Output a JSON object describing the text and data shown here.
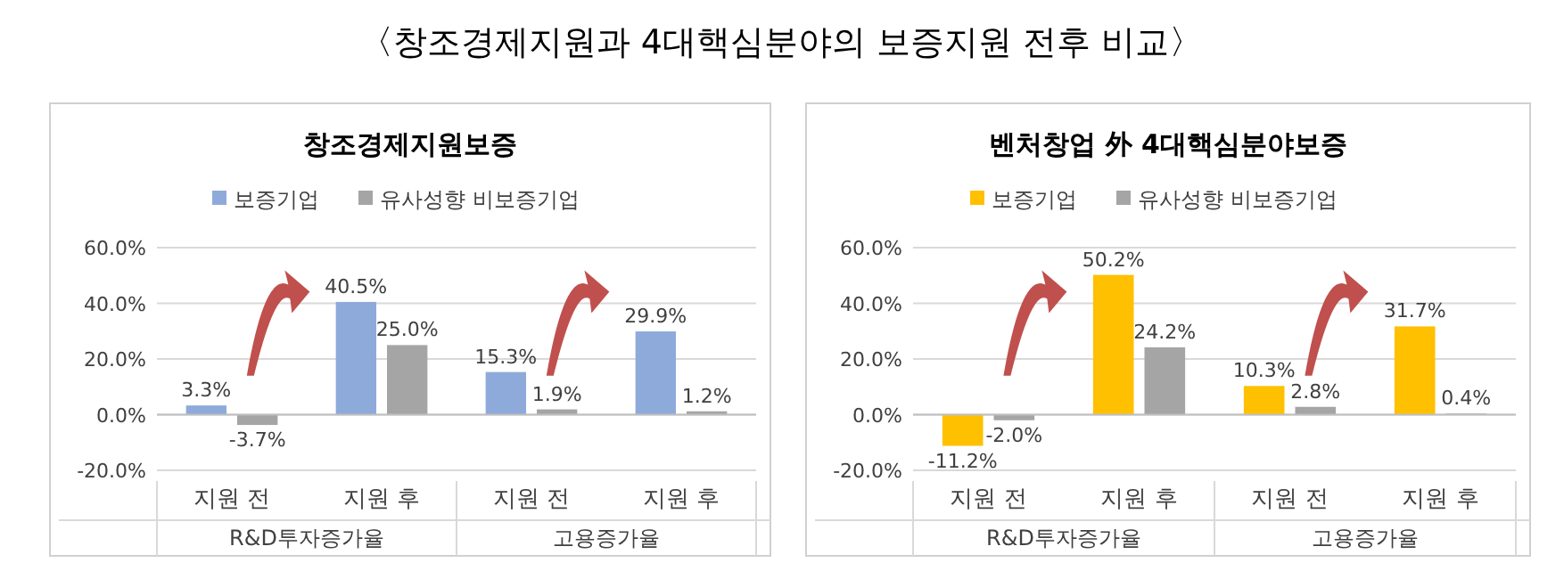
{
  "chart_data": [
    {
      "type": "bar",
      "title": "창조경제지원보증",
      "categories": [
        "지원 전",
        "지원 후",
        "지원 전",
        "지원 후"
      ],
      "series": [
        {
          "name": "보증기업",
          "color": "#8eaadb",
          "values": [
            3.3,
            40.5,
            15.3,
            29.9
          ],
          "value_labels": [
            "3.3%",
            "40.5%",
            "15.3%",
            "29.9%"
          ]
        },
        {
          "name": "유사성향 비보증기업",
          "color": "#a5a5a5",
          "values": [
            -3.7,
            25.0,
            1.9,
            1.2
          ],
          "value_labels": [
            "-3.7%",
            "25.0%",
            "1.9%",
            "1.2%"
          ]
        }
      ],
      "ylim": [
        -20,
        60
      ],
      "yticks": [
        {
          "value": -20,
          "label": "-20.0%"
        },
        {
          "value": 0,
          "label": "0.0%"
        },
        {
          "value": 20,
          "label": "20.0%"
        },
        {
          "value": 40,
          "label": "40.0%"
        },
        {
          "value": 60,
          "label": "60.0%"
        }
      ],
      "grid": "y",
      "legend": "top",
      "annotations": [
        "〈창조경제지원과 4대핵심분야의 보증지원 전후 비교〉",
        "R&D투자증가율",
        "고용증가율"
      ]
    },
    {
      "type": "bar",
      "title": "벤처창업 外 4대핵심분야보증",
      "categories": [
        "지원 전",
        "지원 후",
        "지원 전",
        "지원 후"
      ],
      "series": [
        {
          "name": "보증기업",
          "color": "#ffc000",
          "values": [
            -11.2,
            50.2,
            10.3,
            31.7
          ],
          "value_labels": [
            "-11.2%",
            "50.2%",
            "10.3%",
            "31.7%"
          ]
        },
        {
          "name": "유사성향 비보증기업",
          "color": "#a5a5a5",
          "values": [
            -2.0,
            24.2,
            2.8,
            0.4
          ],
          "value_labels": [
            "-2.0%",
            "24.2%",
            "2.8%",
            "0.4%"
          ]
        }
      ],
      "ylim": [
        -20,
        60
      ],
      "yticks": [
        {
          "value": -20,
          "label": "-20.0%"
        },
        {
          "value": 0,
          "label": "0.0%"
        },
        {
          "value": 20,
          "label": "20.0%"
        },
        {
          "value": 40,
          "label": "40.0%"
        },
        {
          "value": 60,
          "label": "60.0%"
        }
      ],
      "grid": "y",
      "legend": "top",
      "annotations": [
        "R&D투자증가율",
        "고용증가율"
      ]
    }
  ]
}
